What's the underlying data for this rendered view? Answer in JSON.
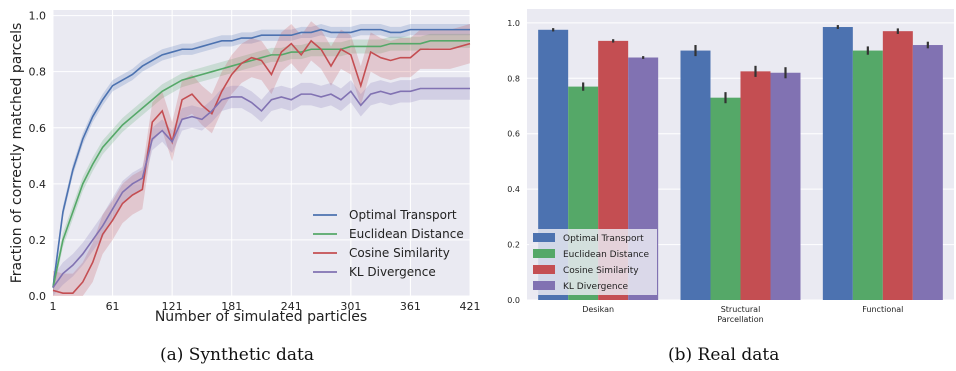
{
  "chart_data": [
    {
      "type": "line",
      "caption": "(a) Synthetic data",
      "xlabel": "Number of simulated particles",
      "ylabel": "Fraction of correctly matched parcels",
      "xlim": [
        1,
        421
      ],
      "ylim": [
        0,
        1.0
      ],
      "x_ticks": [
        "1",
        "61",
        "121",
        "181",
        "241",
        "301",
        "361",
        "421"
      ],
      "y_ticks": [
        "0.0",
        "0.2",
        "0.4",
        "0.6",
        "0.8",
        "1.0"
      ],
      "legend_position": "lower-right",
      "grid": true,
      "x": [
        1,
        11,
        21,
        31,
        41,
        51,
        61,
        71,
        81,
        91,
        101,
        111,
        121,
        131,
        141,
        151,
        161,
        171,
        181,
        191,
        201,
        211,
        221,
        231,
        241,
        251,
        261,
        271,
        281,
        291,
        301,
        311,
        321,
        331,
        341,
        351,
        361,
        371,
        381,
        391,
        401,
        411,
        421
      ],
      "series": [
        {
          "name": "Optimal Transport",
          "color": "#4c72b0",
          "values": [
            0.03,
            0.3,
            0.45,
            0.56,
            0.64,
            0.7,
            0.75,
            0.77,
            0.79,
            0.82,
            0.84,
            0.86,
            0.87,
            0.88,
            0.88,
            0.89,
            0.9,
            0.91,
            0.91,
            0.92,
            0.92,
            0.93,
            0.93,
            0.93,
            0.93,
            0.94,
            0.94,
            0.95,
            0.94,
            0.94,
            0.94,
            0.95,
            0.95,
            0.95,
            0.94,
            0.94,
            0.95,
            0.95,
            0.95,
            0.95,
            0.95,
            0.95,
            0.95
          ],
          "band": 0.02
        },
        {
          "name": "Euclidean Distance",
          "color": "#55a868",
          "values": [
            0.03,
            0.2,
            0.3,
            0.4,
            0.47,
            0.53,
            0.57,
            0.61,
            0.64,
            0.67,
            0.7,
            0.73,
            0.75,
            0.77,
            0.78,
            0.79,
            0.8,
            0.81,
            0.82,
            0.83,
            0.84,
            0.85,
            0.86,
            0.86,
            0.87,
            0.87,
            0.88,
            0.88,
            0.88,
            0.88,
            0.89,
            0.89,
            0.89,
            0.89,
            0.9,
            0.9,
            0.9,
            0.9,
            0.91,
            0.91,
            0.91,
            0.91,
            0.91
          ],
          "band": 0.025
        },
        {
          "name": "Cosine Similarity",
          "color": "#c44e52",
          "values": [
            0.02,
            0.01,
            0.01,
            0.05,
            0.12,
            0.22,
            0.27,
            0.33,
            0.36,
            0.38,
            0.62,
            0.66,
            0.55,
            0.7,
            0.72,
            0.68,
            0.65,
            0.73,
            0.79,
            0.83,
            0.85,
            0.84,
            0.79,
            0.87,
            0.9,
            0.86,
            0.91,
            0.88,
            0.82,
            0.88,
            0.86,
            0.75,
            0.87,
            0.85,
            0.84,
            0.85,
            0.85,
            0.88,
            0.88,
            0.88,
            0.88,
            0.89,
            0.9
          ],
          "band": 0.07
        },
        {
          "name": "KL Divergence",
          "color": "#8172b2",
          "values": [
            0.03,
            0.08,
            0.11,
            0.15,
            0.2,
            0.25,
            0.31,
            0.37,
            0.4,
            0.42,
            0.56,
            0.59,
            0.55,
            0.63,
            0.64,
            0.63,
            0.66,
            0.7,
            0.71,
            0.71,
            0.69,
            0.66,
            0.7,
            0.71,
            0.7,
            0.72,
            0.72,
            0.71,
            0.72,
            0.7,
            0.73,
            0.68,
            0.72,
            0.73,
            0.72,
            0.73,
            0.73,
            0.74,
            0.74,
            0.74,
            0.74,
            0.74,
            0.74
          ],
          "band": 0.04
        }
      ]
    },
    {
      "type": "bar",
      "caption": "(b) Real data",
      "categories": [
        "Desikan",
        "Structural\nParcellation",
        "Functional"
      ],
      "ylim": [
        0,
        1.0
      ],
      "y_ticks": [
        "0.0",
        "0.2",
        "0.4",
        "0.6",
        "0.8",
        "1.0"
      ],
      "legend_position": "lower-left",
      "grid": true,
      "series": [
        {
          "name": "Optimal Transport",
          "color": "#4c72b0",
          "values": [
            0.975,
            0.9,
            0.985
          ],
          "err": [
            0.006,
            0.02,
            0.007
          ]
        },
        {
          "name": "Euclidean Distance",
          "color": "#55a868",
          "values": [
            0.77,
            0.73,
            0.9
          ],
          "err": [
            0.015,
            0.02,
            0.015
          ]
        },
        {
          "name": "Cosine Similarity",
          "color": "#c44e52",
          "values": [
            0.935,
            0.825,
            0.97
          ],
          "err": [
            0.006,
            0.02,
            0.01
          ]
        },
        {
          "name": "KL Divergence",
          "color": "#8172b2",
          "values": [
            0.875,
            0.82,
            0.92
          ],
          "err": [
            0.005,
            0.02,
            0.012
          ]
        }
      ]
    }
  ]
}
